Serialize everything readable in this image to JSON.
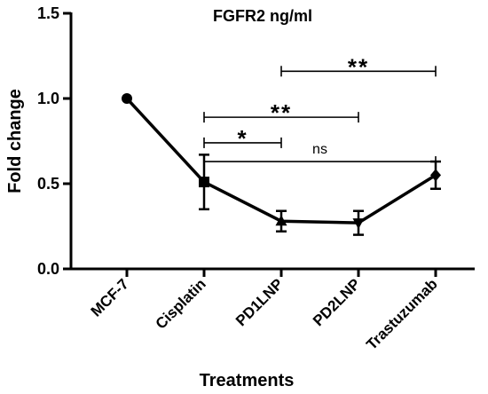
{
  "chart_data": {
    "type": "line",
    "title": "FGFR2 ng/ml",
    "xlabel": "Treatments",
    "ylabel": "Fold change",
    "ylim": [
      0,
      1.5
    ],
    "yticks": [
      "0.0",
      "0.5",
      "1.0",
      "1.5"
    ],
    "grid": false,
    "categories": [
      "MCF-7",
      "Cisplatin",
      "PD1LNP",
      "PD2LNP",
      "Trastuzumab"
    ],
    "series": [
      {
        "values": [
          1.0,
          0.51,
          0.28,
          0.27,
          0.55
        ],
        "error": [
          0,
          0.16,
          0.06,
          0.07,
          0.08
        ],
        "markers": [
          "circle",
          "square",
          "triangle-up",
          "triangle-down",
          "diamond"
        ]
      }
    ],
    "significance": [
      {
        "from": 1,
        "to": 2,
        "label": "*",
        "y": 0.74
      },
      {
        "from": 1,
        "to": 3,
        "label": "**",
        "y": 0.89
      },
      {
        "from": 2,
        "to": 4,
        "label": "**",
        "y": 1.16
      },
      {
        "from": 1,
        "to": 4,
        "label": "ns",
        "y": 0.63
      }
    ]
  }
}
